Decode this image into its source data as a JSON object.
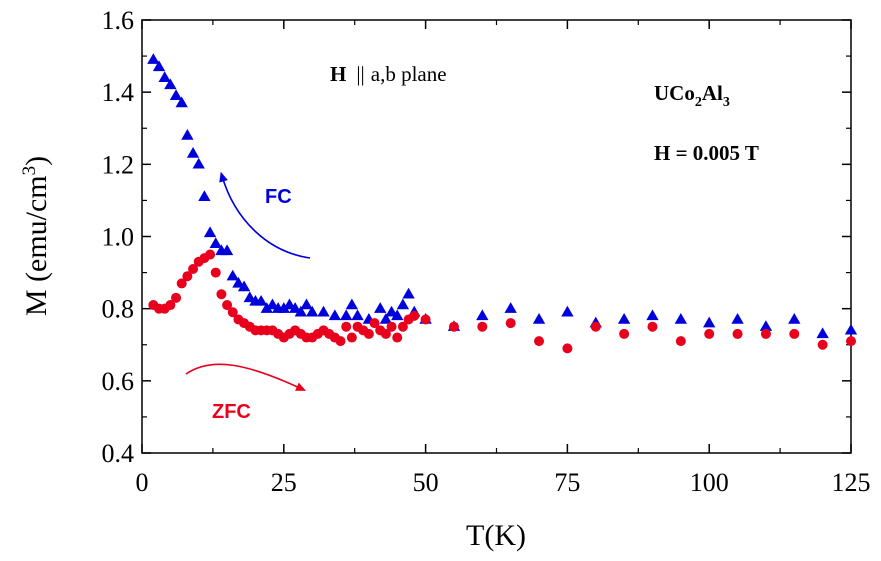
{
  "chart_data": {
    "type": "scatter",
    "xlabel": "T(K)",
    "ylabel_main": "M (emu/cm",
    "ylabel_sup": "3",
    "ylabel_close": ")",
    "xlim": [
      0,
      125
    ],
    "ylim": [
      0.4,
      1.6
    ],
    "xticks": [
      0,
      25,
      50,
      75,
      100,
      125
    ],
    "yticks": [
      0.4,
      0.6,
      0.8,
      1.0,
      1.2,
      1.4,
      1.6
    ],
    "xtick_labels": [
      "0",
      "25",
      "50",
      "75",
      "100",
      "125"
    ],
    "ytick_labels": [
      "0.4",
      "0.6",
      "0.8",
      "1.0",
      "1.2",
      "1.4",
      "1.6"
    ],
    "grid": false,
    "colors": {
      "fc": "#0000dd",
      "zfc": "#e8001c"
    },
    "series": [
      {
        "name": "FC",
        "marker": "triangle",
        "x": [
          2,
          3,
          4,
          5,
          6,
          7,
          8,
          9,
          10,
          11,
          12,
          13,
          14,
          15,
          16,
          17,
          18,
          19,
          20,
          21,
          22,
          23,
          24,
          25,
          26,
          27,
          28,
          29,
          30,
          32,
          34,
          36,
          37,
          38,
          40,
          42,
          43,
          44,
          45,
          46,
          47,
          48,
          50,
          55,
          60,
          65,
          70,
          75,
          80,
          85,
          90,
          95,
          100,
          105,
          110,
          115,
          120,
          125
        ],
        "y": [
          1.49,
          1.47,
          1.44,
          1.42,
          1.39,
          1.37,
          1.28,
          1.23,
          1.2,
          1.11,
          1.01,
          0.98,
          0.96,
          0.96,
          0.89,
          0.87,
          0.86,
          0.83,
          0.82,
          0.82,
          0.8,
          0.81,
          0.8,
          0.8,
          0.81,
          0.8,
          0.79,
          0.81,
          0.79,
          0.79,
          0.78,
          0.78,
          0.81,
          0.78,
          0.77,
          0.8,
          0.77,
          0.79,
          0.78,
          0.81,
          0.84,
          0.79,
          0.77,
          0.75,
          0.78,
          0.8,
          0.77,
          0.79,
          0.76,
          0.77,
          0.78,
          0.77,
          0.76,
          0.77,
          0.75,
          0.77,
          0.73,
          0.74
        ]
      },
      {
        "name": "ZFC",
        "marker": "circle",
        "x": [
          2,
          3,
          4,
          5,
          6,
          7,
          8,
          9,
          10,
          11,
          12,
          13,
          14,
          15,
          16,
          17,
          18,
          19,
          20,
          21,
          22,
          23,
          24,
          25,
          26,
          27,
          28,
          29,
          30,
          31,
          32,
          33,
          34,
          35,
          36,
          37,
          38,
          39,
          40,
          41,
          42,
          43,
          44,
          45,
          46,
          47,
          48,
          50,
          55,
          60,
          65,
          70,
          75,
          80,
          85,
          90,
          95,
          100,
          105,
          110,
          115,
          120,
          125
        ],
        "y": [
          0.81,
          0.8,
          0.8,
          0.81,
          0.83,
          0.87,
          0.89,
          0.91,
          0.93,
          0.94,
          0.95,
          0.9,
          0.84,
          0.81,
          0.79,
          0.77,
          0.76,
          0.75,
          0.74,
          0.74,
          0.74,
          0.74,
          0.73,
          0.72,
          0.73,
          0.74,
          0.73,
          0.72,
          0.72,
          0.73,
          0.74,
          0.73,
          0.72,
          0.71,
          0.75,
          0.72,
          0.75,
          0.74,
          0.73,
          0.76,
          0.74,
          0.73,
          0.75,
          0.72,
          0.75,
          0.77,
          0.78,
          0.77,
          0.75,
          0.75,
          0.76,
          0.71,
          0.69,
          0.75,
          0.73,
          0.75,
          0.71,
          0.73,
          0.73,
          0.73,
          0.73,
          0.7,
          0.71
        ]
      }
    ],
    "annotations": {
      "field_dir_bold": "H",
      "field_dir_sep": "||",
      "field_dir_rest": "a,b plane",
      "compound_u": "UCo",
      "compound_2": "2",
      "compound_al": "Al",
      "compound_3": "3",
      "field_value": "H = 0.005 T",
      "fc_label": "FC",
      "zfc_label": "ZFC"
    }
  }
}
